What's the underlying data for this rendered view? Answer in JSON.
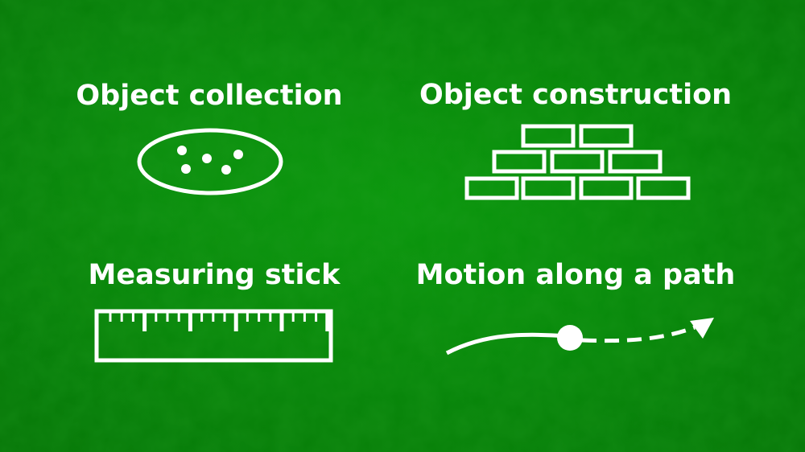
{
  "labels": {
    "object_collection": "Object collection",
    "object_construction": "Object construction",
    "measuring_stick": "Measuring stick",
    "motion_along_path": "Motion along a path"
  },
  "colors": {
    "background": "#0a960c",
    "foreground": "#ffffff"
  },
  "icons": {
    "object_collection": "dots-in-ellipse-icon",
    "object_construction": "brick-wall-icon",
    "measuring_stick": "ruler-icon",
    "motion_along_path": "moving-point-arrow-icon"
  }
}
